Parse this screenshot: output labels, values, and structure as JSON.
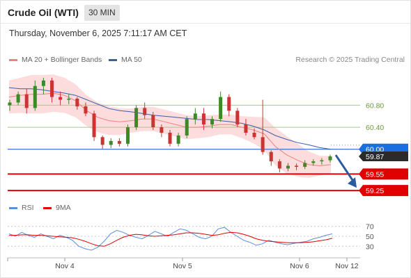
{
  "header": {
    "title": "Crude Oil (WTI)",
    "interval": "30 MIN",
    "datetime": "Thursday, November 6, 2025 7:11:17 AM CET",
    "credit": "Research © 2025 Trading Central"
  },
  "legend": {
    "ma20": "MA 20 + Bollinger Bands",
    "ma50": "MA 50",
    "rsi": "RSI",
    "rsi_ma": "9MA"
  },
  "colors": {
    "candle_up": "#3c8a25",
    "candle_down": "#c33",
    "ma20": "#f08080",
    "bollinger_fill": "#fcdcdc",
    "ma50": "#3a5ea8",
    "pivot_line": "#3b6fd6",
    "support_line": "#e00000",
    "resistance_line": "#a4cc80",
    "rsi": "#5a8de0",
    "rsi_ma": "#e00000",
    "arrow": "#2c5aa0"
  },
  "chart_data": [
    {
      "type": "candlestick",
      "title": "Crude Oil (WTI)",
      "interval": "30 MIN",
      "x_ticks": [
        "Nov 4",
        "Nov 5",
        "Nov 6",
        "Nov 12"
      ],
      "ylim": [
        59.15,
        61.45
      ],
      "y_levels": [
        {
          "value": 60.8,
          "label": "60.80",
          "kind": "resistance"
        },
        {
          "value": 60.4,
          "label": "60.40",
          "kind": "resistance"
        },
        {
          "value": 60.0,
          "label": "60.00",
          "kind": "pivot"
        },
        {
          "value": 59.55,
          "label": "59.55",
          "kind": "support"
        },
        {
          "value": 59.25,
          "label": "59.25",
          "kind": "support"
        }
      ],
      "last_price": {
        "value": 59.87,
        "label": "59.87"
      },
      "series": [
        {
          "name": "MA 20 + Bollinger Bands",
          "kind": "ma20",
          "values": [
            60.95,
            60.98,
            61.0,
            61.0,
            61.02,
            60.98,
            60.88,
            60.7,
            60.58,
            60.52,
            60.5,
            60.52,
            60.55,
            60.55,
            60.5,
            60.45,
            60.4,
            60.4,
            60.42,
            60.45,
            60.45,
            60.4,
            60.35,
            60.28,
            60.05,
            59.9,
            59.8,
            59.72,
            59.7,
            59.72
          ]
        },
        {
          "name": "MA 50",
          "kind": "ma50",
          "values": [
            61.12,
            61.1,
            61.1,
            61.08,
            61.05,
            61.02,
            60.98,
            60.9,
            60.82,
            60.74,
            60.7,
            60.68,
            60.65,
            60.62,
            60.6,
            60.58,
            60.56,
            60.54,
            60.54,
            60.52,
            60.5,
            60.47,
            60.42,
            60.35,
            60.25,
            60.18,
            60.12,
            60.08,
            60.03,
            60.0
          ]
        }
      ],
      "candles": [
        {
          "o": 60.8,
          "h": 60.9,
          "l": 60.7,
          "c": 60.85
        },
        {
          "o": 60.85,
          "h": 61.05,
          "l": 60.8,
          "c": 61.0
        },
        {
          "o": 61.0,
          "h": 61.1,
          "l": 60.65,
          "c": 60.75
        },
        {
          "o": 60.75,
          "h": 61.25,
          "l": 60.7,
          "c": 61.15
        },
        {
          "o": 61.15,
          "h": 61.3,
          "l": 61.0,
          "c": 61.25
        },
        {
          "o": 61.25,
          "h": 61.3,
          "l": 60.85,
          "c": 60.95
        },
        {
          "o": 60.95,
          "h": 61.05,
          "l": 60.8,
          "c": 60.9
        },
        {
          "o": 60.9,
          "h": 61.0,
          "l": 60.82,
          "c": 60.92
        },
        {
          "o": 60.92,
          "h": 60.95,
          "l": 60.72,
          "c": 60.78
        },
        {
          "o": 60.78,
          "h": 60.85,
          "l": 60.6,
          "c": 60.65
        },
        {
          "o": 60.65,
          "h": 60.7,
          "l": 60.15,
          "c": 60.22
        },
        {
          "o": 60.22,
          "h": 60.25,
          "l": 60.0,
          "c": 60.08
        },
        {
          "o": 60.08,
          "h": 60.2,
          "l": 60.02,
          "c": 60.15
        },
        {
          "o": 60.15,
          "h": 60.2,
          "l": 60.05,
          "c": 60.1
        },
        {
          "o": 60.1,
          "h": 60.45,
          "l": 60.05,
          "c": 60.4
        },
        {
          "o": 60.4,
          "h": 60.8,
          "l": 60.35,
          "c": 60.75
        },
        {
          "o": 60.75,
          "h": 60.85,
          "l": 60.55,
          "c": 60.62
        },
        {
          "o": 60.62,
          "h": 60.68,
          "l": 60.35,
          "c": 60.4
        },
        {
          "o": 60.4,
          "h": 60.45,
          "l": 60.22,
          "c": 60.3
        },
        {
          "o": 60.3,
          "h": 60.35,
          "l": 60.05,
          "c": 60.1
        },
        {
          "o": 60.1,
          "h": 60.3,
          "l": 60.05,
          "c": 60.25
        },
        {
          "o": 60.25,
          "h": 60.6,
          "l": 60.2,
          "c": 60.55
        },
        {
          "o": 60.55,
          "h": 60.75,
          "l": 60.45,
          "c": 60.65
        },
        {
          "o": 60.65,
          "h": 60.75,
          "l": 60.35,
          "c": 60.45
        },
        {
          "o": 60.45,
          "h": 60.6,
          "l": 60.38,
          "c": 60.55
        },
        {
          "o": 60.55,
          "h": 61.05,
          "l": 60.5,
          "c": 60.95
        },
        {
          "o": 60.95,
          "h": 61.0,
          "l": 60.6,
          "c": 60.7
        },
        {
          "o": 60.7,
          "h": 60.75,
          "l": 60.4,
          "c": 60.45
        },
        {
          "o": 60.45,
          "h": 60.55,
          "l": 60.25,
          "c": 60.3
        },
        {
          "o": 60.3,
          "h": 60.38,
          "l": 60.18,
          "c": 60.22
        },
        {
          "o": 60.22,
          "h": 60.9,
          "l": 59.9,
          "c": 59.95
        },
        {
          "o": 59.95,
          "h": 59.98,
          "l": 59.7,
          "c": 59.78
        },
        {
          "o": 59.78,
          "h": 59.82,
          "l": 59.58,
          "c": 59.65
        },
        {
          "o": 59.65,
          "h": 59.75,
          "l": 59.6,
          "c": 59.7
        },
        {
          "o": 59.7,
          "h": 59.74,
          "l": 59.62,
          "c": 59.68
        },
        {
          "o": 59.68,
          "h": 59.8,
          "l": 59.64,
          "c": 59.75
        },
        {
          "o": 59.75,
          "h": 59.82,
          "l": 59.7,
          "c": 59.78
        },
        {
          "o": 59.78,
          "h": 59.84,
          "l": 59.72,
          "c": 59.8
        },
        {
          "o": 59.8,
          "h": 59.9,
          "l": 59.76,
          "c": 59.87
        }
      ],
      "forecast_arrow": {
        "from": 59.87,
        "to": 59.25
      }
    },
    {
      "type": "line",
      "title": "RSI",
      "y_ticks": [
        70,
        50,
        30
      ],
      "ylim": [
        15,
        85
      ],
      "series": [
        {
          "name": "RSI",
          "kind": "rsi",
          "values": [
            55,
            50,
            58,
            52,
            48,
            55,
            50,
            45,
            52,
            48,
            42,
            30,
            25,
            22,
            28,
            40,
            55,
            62,
            58,
            52,
            48,
            45,
            52,
            60,
            55,
            50,
            58,
            65,
            62,
            55,
            48,
            45,
            50,
            65,
            68,
            58,
            50,
            42,
            38,
            32,
            35,
            42,
            38,
            35,
            33,
            36,
            38,
            40,
            45,
            48,
            52,
            55
          ]
        },
        {
          "name": "9MA",
          "kind": "rsi_ma",
          "values": [
            52,
            52,
            53,
            53,
            52,
            52,
            51,
            50,
            49,
            48,
            47,
            44,
            40,
            35,
            31,
            30,
            35,
            42,
            48,
            52,
            54,
            53,
            51,
            50,
            51,
            52,
            53,
            55,
            57,
            57,
            56,
            54,
            52,
            53,
            56,
            58,
            57,
            54,
            50,
            45,
            42,
            40,
            39,
            38,
            37,
            37,
            37,
            38,
            39,
            41,
            43,
            46
          ]
        }
      ]
    }
  ]
}
